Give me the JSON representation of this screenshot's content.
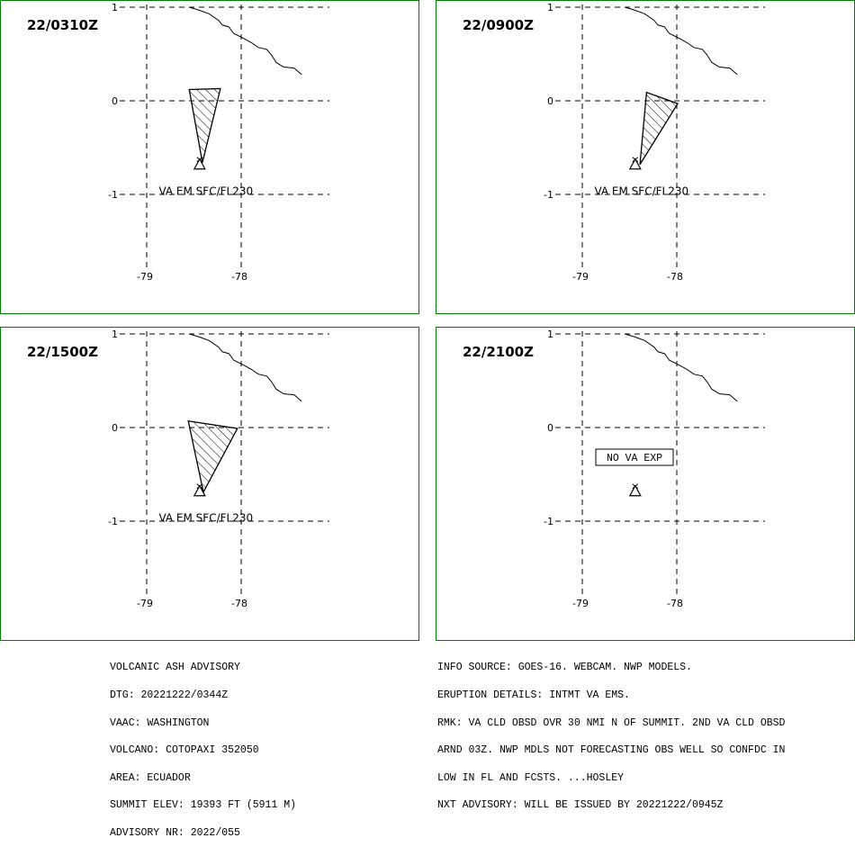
{
  "panels": [
    {
      "time": "22/0310Z",
      "ash": [
        [
          -78.55,
          0.12
        ],
        [
          -78.22,
          0.13
        ],
        [
          -78.41,
          -0.66
        ]
      ],
      "label": "VA EM SFC/FL230",
      "box": ""
    },
    {
      "time": "22/0900Z",
      "ash": [
        [
          -78.32,
          0.09
        ],
        [
          -77.99,
          -0.03
        ],
        [
          -78.39,
          -0.68
        ]
      ],
      "label": "VA EM SFC/FL230",
      "box": ""
    },
    {
      "time": "22/1500Z",
      "ash": [
        [
          -78.56,
          0.07
        ],
        [
          -78.04,
          -0.01
        ],
        [
          -78.4,
          -0.69
        ]
      ],
      "label": "VA EM SFC/FL230",
      "box": ""
    },
    {
      "time": "22/2100Z",
      "ash": [],
      "label": "",
      "box": "NO VA EXP"
    }
  ],
  "map": {
    "lat_ticks": [
      "1",
      "0",
      "-1"
    ],
    "lon_ticks": [
      "-79",
      "-78"
    ],
    "volcano": {
      "name": "COTOPAXI",
      "lon": -78.44,
      "lat": -0.68
    },
    "grid_color": "#000000",
    "border_color": "#008000",
    "ash_color": "#000000"
  },
  "advisory_left": [
    "VOLCANIC ASH ADVISORY",
    "DTG: 20221222/0344Z",
    "VAAC: WASHINGTON",
    "VOLCANO: COTOPAXI 352050",
    "AREA: ECUADOR",
    "SUMMIT ELEV: 19393 FT (5911 M)",
    "ADVISORY NR: 2022/055"
  ],
  "advisory_right": [
    "INFO SOURCE: GOES-16. WEBCAM. NWP MODELS.",
    "ERUPTION DETAILS: INTMT VA EMS.",
    "RMK: VA CLD OBSD OVR 30 NMI N OF SUMMIT. 2ND VA CLD OBSD",
    "ARND 03Z. NWP MDLS NOT FORECASTING OBS WELL SO CONFDC IN",
    "LOW IN FL AND FCSTS. ...HOSLEY",
    "NXT ADVISORY: WILL BE ISSUED BY 20221222/0945Z"
  ]
}
